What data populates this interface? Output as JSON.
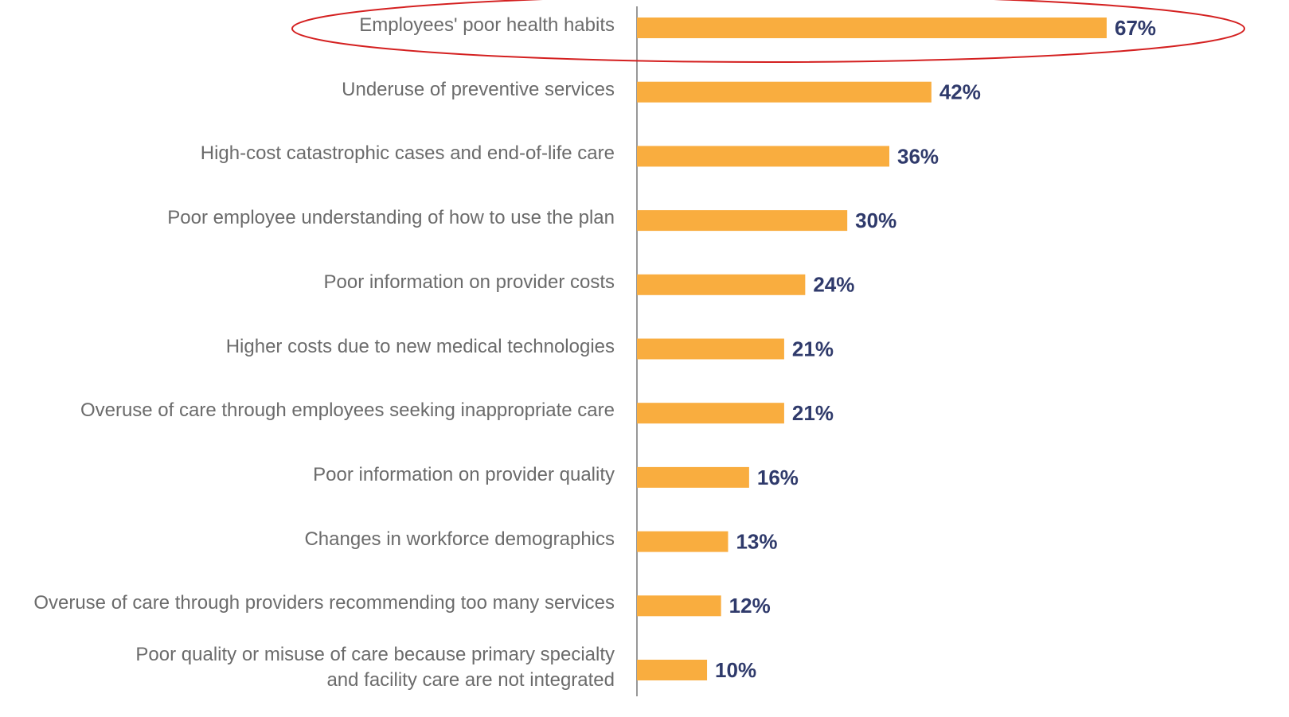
{
  "chart_data": {
    "type": "bar",
    "orientation": "horizontal",
    "categories": [
      "Employees' poor health habits",
      "Underuse of preventive services",
      "High-cost catastrophic cases and end-of-life care",
      "Poor employee understanding of how to use the plan",
      "Poor information on provider costs",
      "Higher costs due to new medical technologies",
      "Overuse of care through employees seeking inappropriate care",
      "Poor information on provider quality",
      "Changes in workforce demographics",
      "Overuse of care through providers recommending too many services",
      "Poor quality or misuse of care because primary specialty\nand facility care are not integrated"
    ],
    "values": [
      67,
      42,
      36,
      30,
      24,
      21,
      21,
      16,
      13,
      12,
      10
    ],
    "value_labels": [
      "67%",
      "42%",
      "36%",
      "30%",
      "24%",
      "21%",
      "21%",
      "16%",
      "13%",
      "12%",
      "10%"
    ],
    "color": "#f9ad3f"
  }
}
